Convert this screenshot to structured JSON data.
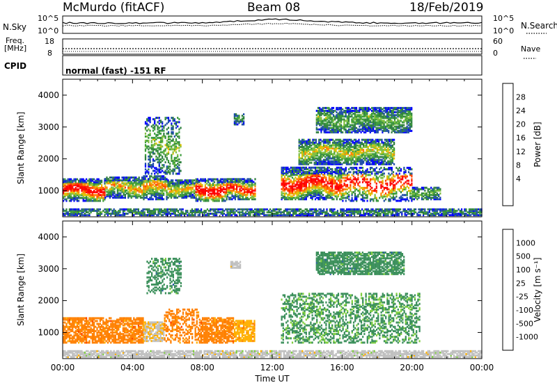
{
  "header": {
    "station": "McMurdo (fitACF)",
    "beam": "Beam 08",
    "date": "18/Feb/2019"
  },
  "noise_panel": {
    "left_label": "N.Sky",
    "left_ticks": [
      "10^5",
      "10^0"
    ],
    "right_label": "N.Search",
    "right_ticks": [
      "10^5",
      "10^0"
    ]
  },
  "freq_panel": {
    "left_label_1": "Freq.",
    "left_label_2": "[MHz]",
    "left_ticks": [
      "18",
      "8"
    ],
    "right_label": "Nave",
    "right_ticks": [
      "60",
      "0"
    ]
  },
  "cpid_panel": {
    "label": "CPID",
    "text": "normal (fast) -151 RF"
  },
  "chart_data": [
    {
      "type": "heatmap",
      "name": "power",
      "ylabel": "Slant Range [km]",
      "yticks": [
        "1000",
        "2000",
        "3000",
        "4000"
      ],
      "ylim": [
        180,
        4500
      ],
      "xlim_hours": [
        0,
        24
      ],
      "colorbar_label": "Power [dB]",
      "colorbar_ticks": [
        "28",
        "24",
        "20",
        "16",
        "12",
        "8",
        "4"
      ],
      "colors": [
        "#0000ff",
        "#1f4fa8",
        "#2f7f3f",
        "#3a9b3a",
        "#7fbf3f",
        "#e0c000",
        "#ff8000",
        "#ff4000",
        "#ff0000"
      ],
      "echo_regions": [
        {
          "t0": 0.0,
          "t1": 2.4,
          "r0": 650,
          "r1": 1350,
          "peak": 0.9
        },
        {
          "t0": 2.4,
          "t1": 4.6,
          "r0": 750,
          "r1": 1400,
          "peak": 0.55
        },
        {
          "t0": 4.6,
          "t1": 6.0,
          "r0": 700,
          "r1": 1450,
          "peak": 0.6
        },
        {
          "t0": 6.0,
          "t1": 7.6,
          "r0": 750,
          "r1": 1300,
          "peak": 0.5
        },
        {
          "t0": 7.6,
          "t1": 9.4,
          "r0": 650,
          "r1": 1350,
          "peak": 0.95
        },
        {
          "t0": 9.4,
          "t1": 11.0,
          "r0": 700,
          "r1": 1350,
          "peak": 0.8
        },
        {
          "t0": 12.5,
          "t1": 16.0,
          "r0": 700,
          "r1": 1700,
          "peak": 0.85
        },
        {
          "t0": 16.0,
          "t1": 20.0,
          "r0": 650,
          "r1": 1700,
          "peak": 0.85
        },
        {
          "t0": 20.0,
          "t1": 21.6,
          "r0": 700,
          "r1": 1100,
          "peak": 0.3
        },
        {
          "t0": 4.7,
          "t1": 6.8,
          "r0": 1500,
          "r1": 3300,
          "peak": 0.35
        },
        {
          "t0": 9.8,
          "t1": 10.4,
          "r0": 3050,
          "r1": 3400,
          "peak": 0.25
        },
        {
          "t0": 13.5,
          "t1": 19.0,
          "r0": 1800,
          "r1": 2600,
          "peak": 0.45
        },
        {
          "t0": 14.5,
          "t1": 20.0,
          "r0": 2800,
          "r1": 3600,
          "peak": 0.3
        },
        {
          "t0": 0.0,
          "t1": 24.0,
          "r0": 200,
          "r1": 400,
          "peak": 0.2
        }
      ]
    },
    {
      "type": "heatmap",
      "name": "velocity",
      "ylabel": "Slant Range [km]",
      "yticks": [
        "1000",
        "2000",
        "3000",
        "4000"
      ],
      "ylim": [
        180,
        4500
      ],
      "xlim_hours": [
        0,
        24
      ],
      "xticks": [
        "00:00",
        "04:00",
        "08:00",
        "12:00",
        "16:00",
        "20:00",
        "00:00"
      ],
      "xlabel": "Time UT",
      "colorbar_label": "Velocity [m s^-1]",
      "colorbar_ticks": [
        "1000",
        "500",
        "100",
        "25",
        "-25",
        "-100",
        "-500",
        "-1000"
      ],
      "colors": [
        "#ff0000",
        "#ff4000",
        "#ff8000",
        "#ffb000",
        "#c0c0c0",
        "#7fcf3f",
        "#3a8f5a",
        "#2a5fa0",
        "#0000ff"
      ],
      "echo_regions": [
        {
          "t0": 0.0,
          "t1": 4.6,
          "r0": 650,
          "r1": 1450,
          "vel": 0.28
        },
        {
          "t0": 4.6,
          "t1": 5.8,
          "r0": 700,
          "r1": 1300,
          "vel": 0.45
        },
        {
          "t0": 5.8,
          "t1": 7.8,
          "r0": 650,
          "r1": 1700,
          "vel": 0.28
        },
        {
          "t0": 7.8,
          "t1": 9.8,
          "r0": 650,
          "r1": 1450,
          "vel": 0.28
        },
        {
          "t0": 9.8,
          "t1": 11.0,
          "r0": 700,
          "r1": 1350,
          "vel": 0.38
        },
        {
          "t0": 12.5,
          "t1": 20.4,
          "r0": 650,
          "r1": 2200,
          "vel": 0.7
        },
        {
          "t0": 4.8,
          "t1": 6.8,
          "r0": 2200,
          "r1": 3300,
          "vel": 0.72
        },
        {
          "t0": 9.6,
          "t1": 10.2,
          "r0": 3000,
          "r1": 3200,
          "vel": 0.5
        },
        {
          "t0": 14.5,
          "t1": 19.5,
          "r0": 2800,
          "r1": 3500,
          "vel": 0.72
        },
        {
          "t0": 0.0,
          "t1": 24.0,
          "r0": 200,
          "r1": 400,
          "vel": 0.5
        }
      ]
    }
  ]
}
